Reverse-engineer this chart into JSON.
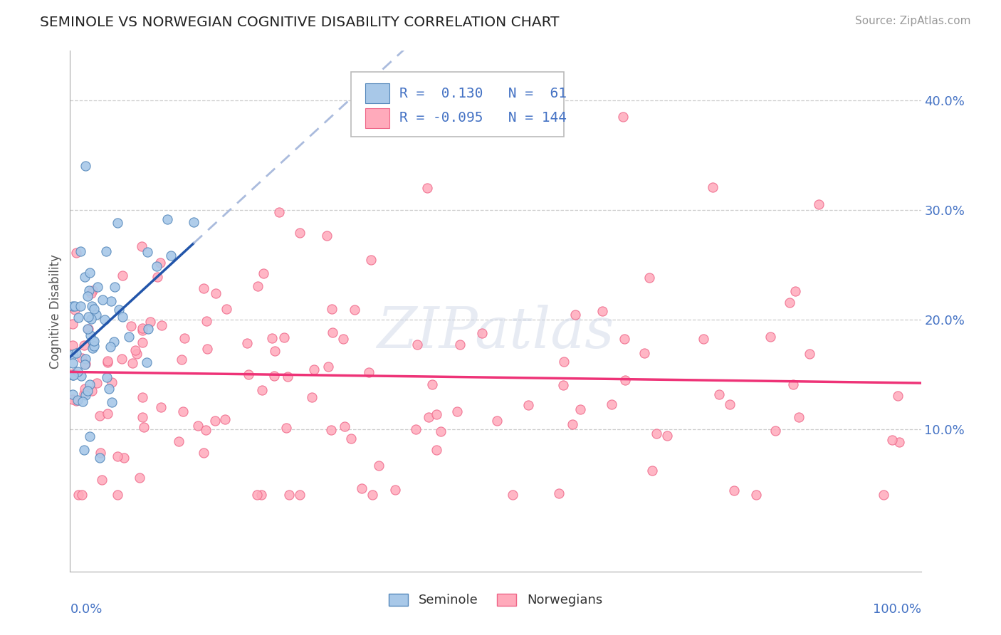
{
  "title": "SEMINOLE VS NORWEGIAN COGNITIVE DISABILITY CORRELATION CHART",
  "source": "Source: ZipAtlas.com",
  "ylabel": "Cognitive Disability",
  "right_yticks": [
    "10.0%",
    "20.0%",
    "30.0%",
    "40.0%"
  ],
  "right_ytick_vals": [
    0.1,
    0.2,
    0.3,
    0.4
  ],
  "xlim": [
    0.0,
    1.0
  ],
  "ylim": [
    -0.03,
    0.445
  ],
  "seminole_color": "#a8c8e8",
  "seminole_edge": "#5588bb",
  "norwegian_color": "#ffaabb",
  "norwegian_edge": "#ee6688",
  "trend_blue": "#2255aa",
  "trend_pink": "#ee3377",
  "trend_dashed_color": "#aabbdd",
  "legend_R_blue_text": " 0.130",
  "legend_R_pink_text": "-0.095",
  "legend_N_blue": " 61",
  "legend_N_pink": "144",
  "watermark_text": "ZIPatlas",
  "background_color": "#ffffff",
  "grid_color": "#cccccc",
  "title_color": "#222222",
  "source_color": "#999999",
  "axis_label_color": "#4472c4",
  "ylabel_color": "#555555"
}
